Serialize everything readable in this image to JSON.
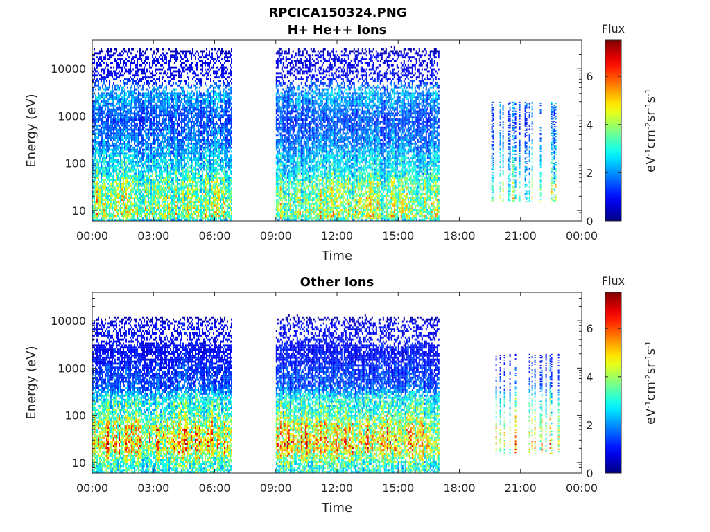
{
  "figure": {
    "title": "RPCICA150324.PNG"
  },
  "colorbar_label": "Flux",
  "colorbar_units": {
    "parts": [
      {
        "t": "eV",
        "sup": false
      },
      {
        "t": "-1",
        "sup": true
      },
      {
        "t": "cm",
        "sup": false
      },
      {
        "t": "-2",
        "sup": true
      },
      {
        "t": "sr",
        "sup": false
      },
      {
        "t": "-1",
        "sup": true
      },
      {
        "t": "s",
        "sup": false
      },
      {
        "t": "-1",
        "sup": true
      }
    ]
  },
  "colormap": "jet",
  "chart_data": [
    {
      "type": "heatmap",
      "title": "H+ He++ Ions",
      "xlabel": "Time",
      "ylabel": "Energy (eV)",
      "x_ticks": [
        "00:00",
        "03:00",
        "06:00",
        "09:00",
        "12:00",
        "15:00",
        "18:00",
        "21:00",
        "00:00"
      ],
      "x_range_hours": [
        0,
        24
      ],
      "y_scale": "log",
      "y_ticks": [
        10,
        100,
        1000,
        10000
      ],
      "y_range": [
        6,
        40000
      ],
      "color_range": [
        0,
        7.5
      ],
      "colorbar_ticks": [
        0,
        2,
        4,
        6
      ],
      "data_intervals_hours": [
        [
          0.0,
          6.8
        ],
        [
          9.0,
          17.0
        ],
        [
          19.5,
          22.9
        ]
      ],
      "energy_bands": [
        {
          "energy_ev": 14,
          "flux": 4.0
        },
        {
          "energy_ev": 25,
          "flux": 3.5
        },
        {
          "energy_ev": 100,
          "flux": 2.6
        },
        {
          "energy_ev": 300,
          "flux": 1.8
        },
        {
          "energy_ev": 1000,
          "flux": 1.4
        },
        {
          "energy_ev": 2200,
          "flux": 2.2
        },
        {
          "energy_ev": 10000,
          "flux": 0.8
        }
      ]
    },
    {
      "type": "heatmap",
      "title": "Other Ions",
      "xlabel": "Time",
      "ylabel": "Energy (eV)",
      "x_ticks": [
        "00:00",
        "03:00",
        "06:00",
        "09:00",
        "12:00",
        "15:00",
        "18:00",
        "21:00",
        "00:00"
      ],
      "x_range_hours": [
        0,
        24
      ],
      "y_scale": "log",
      "y_ticks": [
        10,
        100,
        1000,
        10000
      ],
      "y_range": [
        6,
        40000
      ],
      "color_range": [
        0,
        7.5
      ],
      "colorbar_ticks": [
        0,
        2,
        4,
        6
      ],
      "data_intervals_hours": [
        [
          0.0,
          6.8
        ],
        [
          9.0,
          17.0
        ],
        [
          19.5,
          22.9
        ]
      ],
      "energy_bands": [
        {
          "energy_ev": 10,
          "flux": 2.8
        },
        {
          "energy_ev": 20,
          "flux": 5.2
        },
        {
          "energy_ev": 50,
          "flux": 4.3
        },
        {
          "energy_ev": 150,
          "flux": 3.0
        },
        {
          "energy_ev": 600,
          "flux": 1.4
        },
        {
          "energy_ev": 2300,
          "flux": 1.0
        },
        {
          "energy_ev": 4500,
          "flux": 0.9
        }
      ]
    }
  ]
}
